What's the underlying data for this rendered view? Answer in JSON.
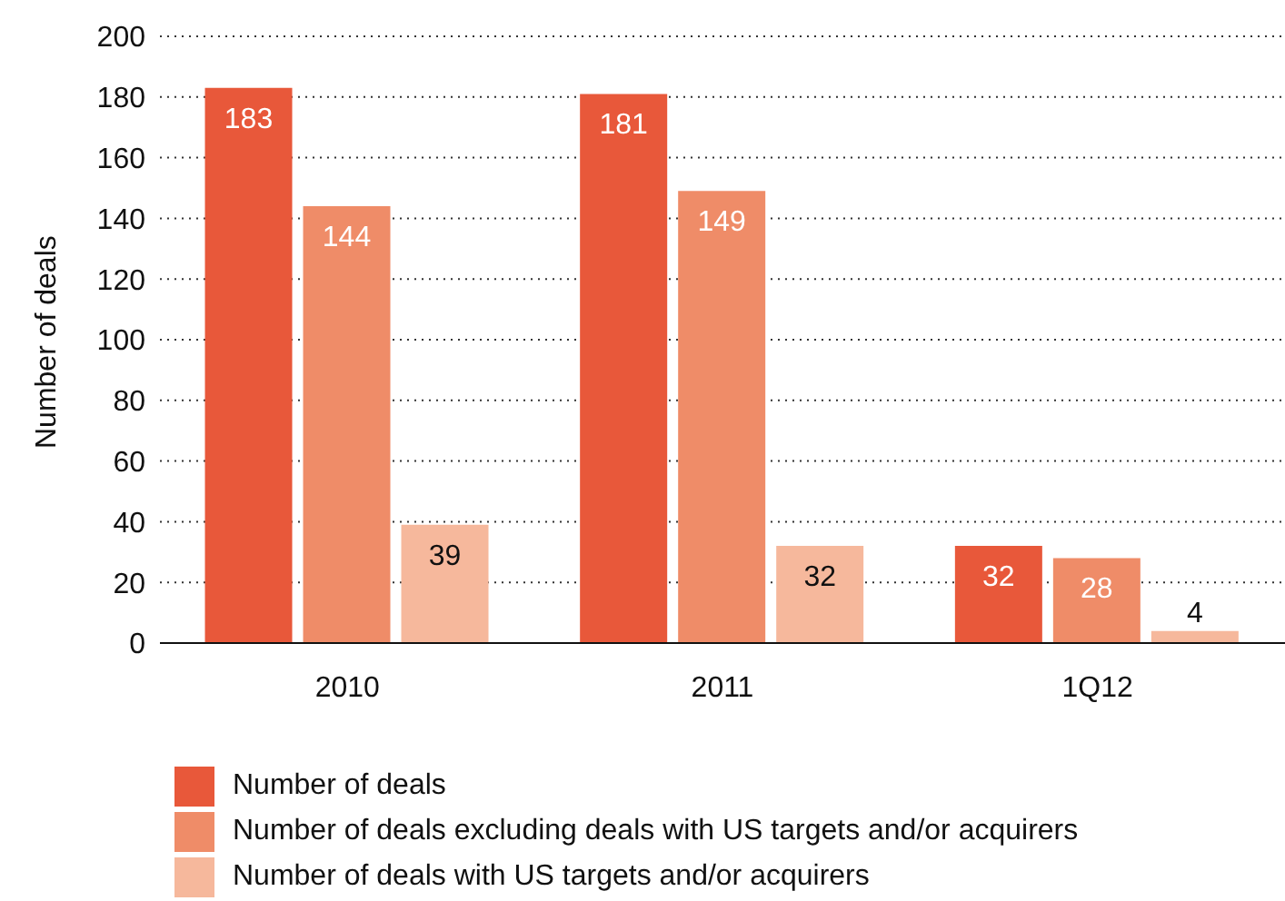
{
  "chart_data": {
    "type": "bar",
    "ylabel": "Number of deals",
    "categories": [
      "2010",
      "2011",
      "1Q12"
    ],
    "series": [
      {
        "name": "Number of deals",
        "color": "#e8583a",
        "values": [
          183,
          181,
          32
        ]
      },
      {
        "name": "Number of deals excluding deals with US targets and/or acquirers",
        "color": "#ef8c68",
        "values": [
          144,
          149,
          28
        ]
      },
      {
        "name": "Number of deals with US targets and/or acquirers",
        "color": "#f6b89c",
        "values": [
          39,
          32,
          4
        ]
      }
    ],
    "ylim": [
      0,
      200
    ],
    "yticks": [
      0,
      20,
      40,
      60,
      80,
      100,
      120,
      140,
      160,
      180,
      200
    ],
    "grid": "y",
    "legend": "bottom",
    "data_labels": true
  }
}
